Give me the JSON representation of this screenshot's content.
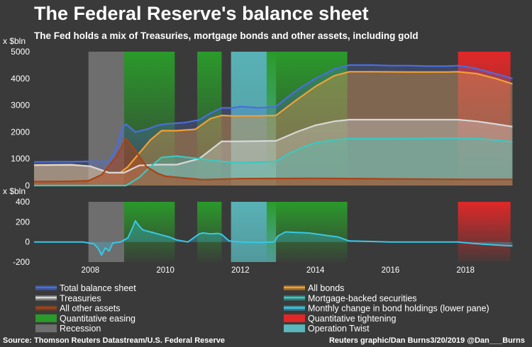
{
  "header": {
    "title": "The Federal Reserve's balance sheet",
    "subtitle": "The Fed holds a mix of Treasuries, mortgage bonds and other assets, including gold"
  },
  "footer": {
    "source": "Source: Thomson Reuters Datastream/U.S. Federal Reserve",
    "credit": "Reuters graphic/Dan Burns3/20/2019 @Dan___Burns"
  },
  "colors": {
    "background": "#3a3a3a",
    "total": "#4a6ee0",
    "all_bonds": "#f5a030",
    "treasuries": "#d8d8d8",
    "mbs": "#3cc8c0",
    "other": "#a84418",
    "monthly_change": "#38c8e8",
    "qe": "#2a9a2a",
    "qt": "#e02828",
    "recession": "#6e6e6e",
    "twist": "#5ab8bc"
  },
  "chart_data": [
    {
      "type": "area",
      "pane": "upper",
      "ylabel": "x $bln",
      "ylim": [
        0,
        5000
      ],
      "yticks": [
        0,
        1000,
        2000,
        3000,
        4000,
        5000
      ],
      "xlim": [
        2006.5,
        2019.3
      ],
      "shaded_periods": [
        {
          "type": "recession",
          "start": 2007.95,
          "end": 2008.9
        },
        {
          "type": "qe",
          "start": 2008.9,
          "end": 2010.25
        },
        {
          "type": "qe",
          "start": 2010.85,
          "end": 2011.5
        },
        {
          "type": "twist",
          "start": 2011.75,
          "end": 2012.95
        },
        {
          "type": "qe",
          "start": 2012.7,
          "end": 2014.85
        },
        {
          "type": "qt",
          "start": 2017.8,
          "end": 2019.2
        }
      ],
      "series": [
        {
          "name": "Total balance sheet",
          "key": "total",
          "x": [
            2006.5,
            2007.0,
            2007.5,
            2007.9,
            2008.5,
            2008.7,
            2008.85,
            2008.95,
            2009.2,
            2009.5,
            2009.8,
            2010.0,
            2010.5,
            2010.9,
            2011.2,
            2011.5,
            2011.8,
            2012.0,
            2012.5,
            2012.95,
            2013.3,
            2013.6,
            2014.0,
            2014.5,
            2014.9,
            2015.5,
            2016.0,
            2016.5,
            2017.0,
            2017.5,
            2017.8,
            2018.2,
            2018.6,
            2019.0,
            2019.25
          ],
          "y": [
            880,
            890,
            890,
            900,
            900,
            1400,
            2150,
            2300,
            2000,
            2100,
            2250,
            2300,
            2350,
            2450,
            2700,
            2900,
            2900,
            2950,
            2900,
            2950,
            3350,
            3650,
            4000,
            4350,
            4500,
            4500,
            4480,
            4480,
            4460,
            4460,
            4480,
            4400,
            4250,
            4100,
            4000
          ]
        },
        {
          "name": "All bonds",
          "key": "all_bonds",
          "x": [
            2006.5,
            2007.5,
            2008.0,
            2008.5,
            2008.8,
            2009.0,
            2009.3,
            2009.6,
            2009.9,
            2010.3,
            2010.8,
            2011.2,
            2011.5,
            2011.8,
            2012.5,
            2012.95,
            2013.5,
            2014.0,
            2014.5,
            2014.9,
            2015.5,
            2016.5,
            2017.5,
            2017.8,
            2018.3,
            2018.8,
            2019.25
          ],
          "y": [
            770,
            780,
            720,
            480,
            480,
            700,
            1200,
            1700,
            2050,
            2050,
            2100,
            2500,
            2620,
            2600,
            2600,
            2620,
            3200,
            3700,
            4100,
            4250,
            4250,
            4240,
            4240,
            4250,
            4180,
            4000,
            3800
          ]
        },
        {
          "name": "Treasuries",
          "key": "treasuries",
          "x": [
            2006.5,
            2007.5,
            2008.0,
            2008.5,
            2008.9,
            2009.3,
            2009.8,
            2010.3,
            2010.9,
            2011.5,
            2012.0,
            2012.95,
            2013.5,
            2014.0,
            2014.5,
            2014.9,
            2016.0,
            2017.8,
            2018.3,
            2018.8,
            2019.25
          ],
          "y": [
            760,
            770,
            720,
            480,
            480,
            750,
            780,
            780,
            1000,
            1650,
            1650,
            1670,
            2000,
            2250,
            2400,
            2460,
            2460,
            2460,
            2400,
            2300,
            2200
          ]
        },
        {
          "name": "Mortgage-backed securities",
          "key": "mbs",
          "x": [
            2006.5,
            2008.95,
            2009.3,
            2009.6,
            2009.9,
            2010.3,
            2010.9,
            2011.5,
            2012.0,
            2012.95,
            2013.3,
            2013.7,
            2014.0,
            2014.5,
            2014.9,
            2016.0,
            2017.8,
            2018.3,
            2018.8,
            2019.25
          ],
          "y": [
            0,
            0,
            300,
            700,
            1050,
            1100,
            1000,
            900,
            850,
            900,
            1200,
            1450,
            1600,
            1700,
            1750,
            1750,
            1770,
            1750,
            1700,
            1630
          ]
        },
        {
          "name": "All other assets",
          "key": "other",
          "x": [
            2006.5,
            2007.0,
            2007.5,
            2007.95,
            2008.3,
            2008.7,
            2008.95,
            2009.1,
            2009.3,
            2009.5,
            2009.8,
            2010.0,
            2010.5,
            2011.0,
            2012.0,
            2014.0,
            2016.0,
            2018.0,
            2019.25
          ],
          "y": [
            150,
            150,
            160,
            180,
            400,
            1100,
            1750,
            1500,
            1100,
            700,
            450,
            350,
            280,
            220,
            260,
            270,
            250,
            230,
            230
          ]
        }
      ]
    },
    {
      "type": "line",
      "pane": "lower",
      "ylabel": "x $bln",
      "ylim": [
        -200,
        400
      ],
      "yticks": [
        -200,
        0,
        200,
        400
      ],
      "xticks": [
        2008,
        2010,
        2012,
        2014,
        2016,
        2018
      ],
      "series": [
        {
          "name": "Monthly change in bond holdings (lower pane)",
          "key": "monthly_change",
          "x": [
            2006.5,
            2007.8,
            2008.1,
            2008.2,
            2008.3,
            2008.4,
            2008.5,
            2008.6,
            2008.8,
            2009.0,
            2009.1,
            2009.2,
            2009.3,
            2009.4,
            2009.5,
            2009.7,
            2009.9,
            2010.1,
            2010.3,
            2010.6,
            2010.9,
            2011.0,
            2011.2,
            2011.4,
            2011.5,
            2011.7,
            2012.0,
            2012.5,
            2012.9,
            2013.0,
            2013.2,
            2013.5,
            2013.8,
            2014.0,
            2014.3,
            2014.6,
            2014.9,
            2015.5,
            2016.0,
            2017.0,
            2017.8,
            2018.2,
            2018.6,
            2019.0,
            2019.25
          ],
          "y": [
            0,
            0,
            -20,
            -60,
            -130,
            -60,
            -90,
            -10,
            0,
            40,
            120,
            210,
            160,
            120,
            110,
            90,
            70,
            50,
            20,
            0,
            80,
            90,
            80,
            85,
            75,
            10,
            0,
            -5,
            0,
            60,
            100,
            95,
            90,
            80,
            65,
            50,
            10,
            5,
            0,
            0,
            0,
            -15,
            -25,
            -35,
            -40
          ]
        }
      ]
    },
    {
      "type": "legend",
      "entries": [
        {
          "label": "Total balance sheet",
          "key": "total",
          "symbol": "line"
        },
        {
          "label": "All bonds",
          "key": "all_bonds",
          "symbol": "line"
        },
        {
          "label": "Treasuries",
          "key": "treasuries",
          "symbol": "line"
        },
        {
          "label": "Mortgage-backed securities",
          "key": "mbs",
          "symbol": "line"
        },
        {
          "label": "All other assets",
          "key": "other",
          "symbol": "line"
        },
        {
          "label": "Monthly change in bond holdings (lower pane)",
          "key": "monthly_change",
          "symbol": "line"
        },
        {
          "label": "Quantitative easing",
          "key": "qe",
          "symbol": "box"
        },
        {
          "label": "Quantitative tightening",
          "key": "qt",
          "symbol": "box"
        },
        {
          "label": "Recession",
          "key": "recession",
          "symbol": "box"
        },
        {
          "label": "Operation Twist",
          "key": "twist",
          "symbol": "box"
        }
      ]
    }
  ]
}
